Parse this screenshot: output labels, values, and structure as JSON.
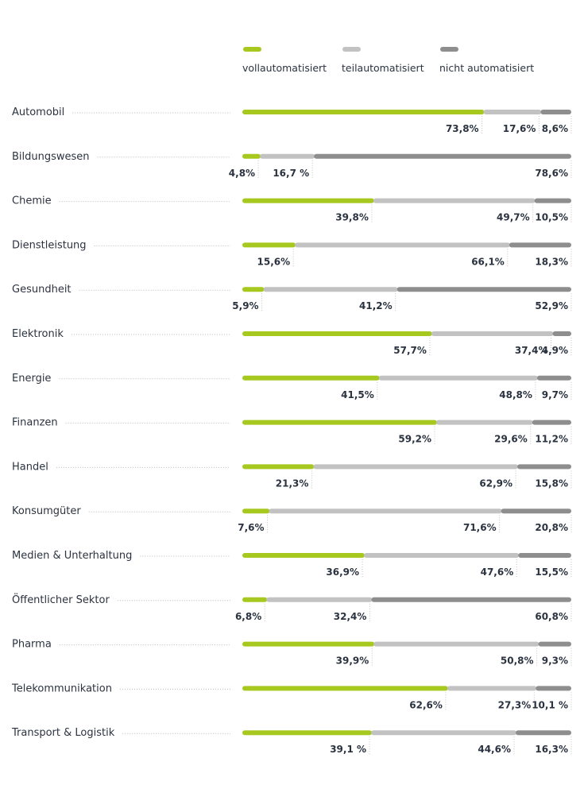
{
  "chart_data": {
    "type": "bar",
    "orientation": "horizontal",
    "stacked": true,
    "percent": true,
    "legend_position": "top",
    "grid": false,
    "colors": {
      "vollautomatisiert": "#a6c81f",
      "teilautomatisiert": "#c2c2c2",
      "nicht automatisiert": "#8e8e8e",
      "text": "#2b3340"
    },
    "categories": [
      "Automobil",
      "Bildungswesen",
      "Chemie",
      "Dienstleistung",
      "Gesundheit",
      "Elektronik",
      "Energie",
      "Finanzen",
      "Handel",
      "Konsumgüter",
      "Medien & Unterhaltung",
      "Öffentlicher Sektor",
      "Pharma",
      "Telekommunikation",
      "Transport & Logistik"
    ],
    "series": [
      {
        "name": "vollautomatisiert",
        "values": [
          73.8,
          4.8,
          39.8,
          15.6,
          5.9,
          57.7,
          41.5,
          59.2,
          21.3,
          7.6,
          36.9,
          6.8,
          39.9,
          62.6,
          39.1
        ],
        "labels": [
          "73,8%",
          "4,8%",
          "39,8%",
          "15,6%",
          "5,9%",
          "57,7%",
          "41,5%",
          "59,2%",
          "21,3%",
          "7,6%",
          "36,9%",
          "6,8%",
          "39,9%",
          "62,6%",
          "39,1 %"
        ]
      },
      {
        "name": "teilautomatisiert",
        "values": [
          17.6,
          16.7,
          49.7,
          66.1,
          41.2,
          37.4,
          48.8,
          29.6,
          62.9,
          71.6,
          47.6,
          32.4,
          50.8,
          27.3,
          44.6
        ],
        "labels": [
          "17,6%",
          "16,7 %",
          "49,7%",
          "66,1%",
          "41,2%",
          "37,4%",
          "48,8%",
          "29,6%",
          "62,9%",
          "71,6%",
          "47,6%",
          "32,4%",
          "50,8%",
          "27,3%",
          "44,6%"
        ]
      },
      {
        "name": "nicht automatisiert",
        "values": [
          8.6,
          78.6,
          10.5,
          18.3,
          52.9,
          4.9,
          9.7,
          11.2,
          15.8,
          20.8,
          15.5,
          60.8,
          9.3,
          10.1,
          16.3
        ],
        "labels": [
          "8,6%",
          "78,6%",
          "10,5%",
          "18,3%",
          "52,9%",
          "4,9%",
          "9,7%",
          "11,2%",
          "15,8%",
          "20,8%",
          "15,5%",
          "60,8%",
          "9,3%",
          "10,1 %",
          "16,3%"
        ]
      }
    ]
  }
}
